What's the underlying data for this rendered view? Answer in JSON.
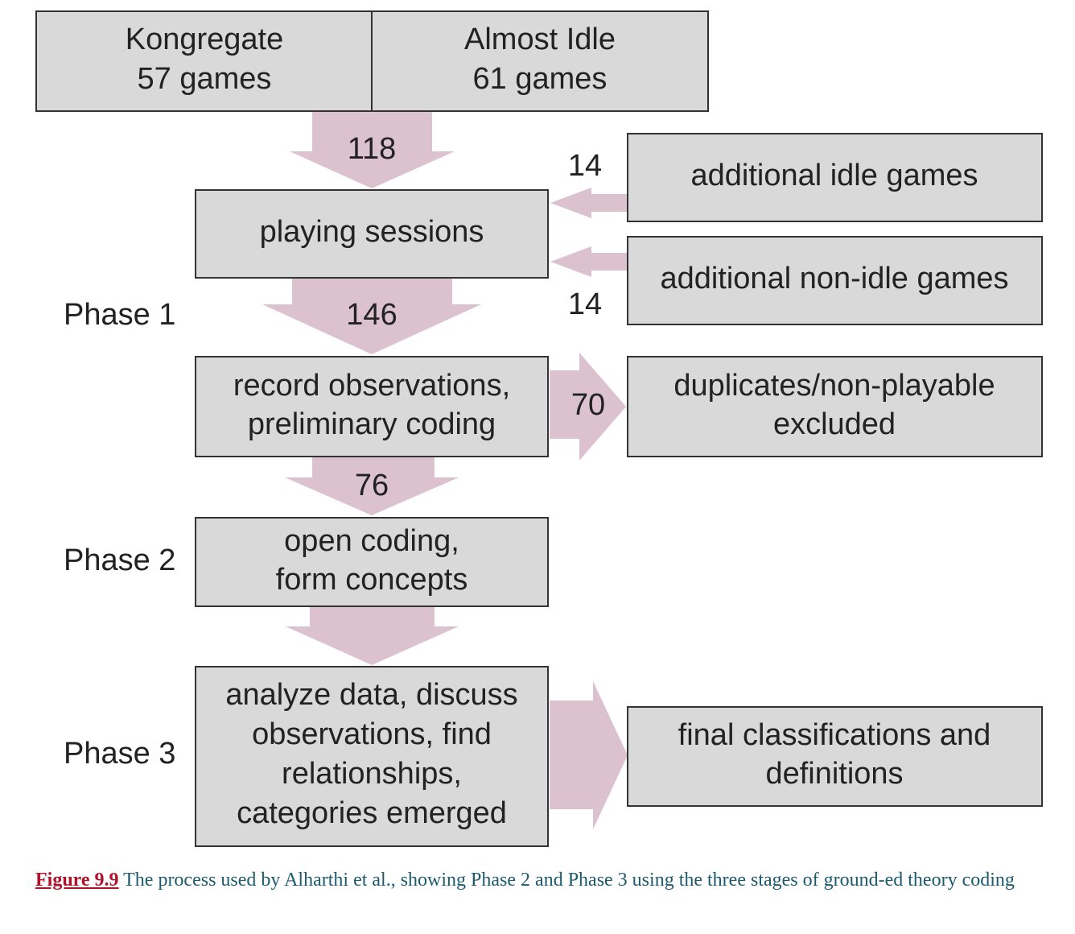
{
  "sources": [
    {
      "lines": [
        "Kongregate",
        "57 games"
      ]
    },
    {
      "lines": [
        "Almost Idle",
        "61 games"
      ]
    }
  ],
  "nodes": [
    {
      "lines": [
        "playing sessions"
      ]
    },
    {
      "lines": [
        "record observations,",
        "preliminary coding"
      ]
    },
    {
      "lines": [
        "open coding,",
        "form concepts"
      ]
    },
    {
      "lines": [
        "analyze data, discuss",
        "observations, find",
        "relationships,",
        "categories emerged"
      ]
    },
    {
      "lines": [
        "additional idle games"
      ]
    },
    {
      "lines": [
        "additional non-idle games"
      ]
    },
    {
      "lines": [
        "duplicates/non-playable",
        "excluded"
      ]
    },
    {
      "lines": [
        "final classifications and",
        "definitions"
      ]
    }
  ],
  "flows": [
    "118",
    "14",
    "14",
    "146",
    "70",
    "76"
  ],
  "phases": [
    "Phase 1",
    "Phase 2",
    "Phase 3"
  ],
  "caption": {
    "label": "Figure 9.9",
    "text": "The process used by Alharthi et al., showing Phase 2 and Phase 3 using the three stages of ground-ed theory coding"
  }
}
